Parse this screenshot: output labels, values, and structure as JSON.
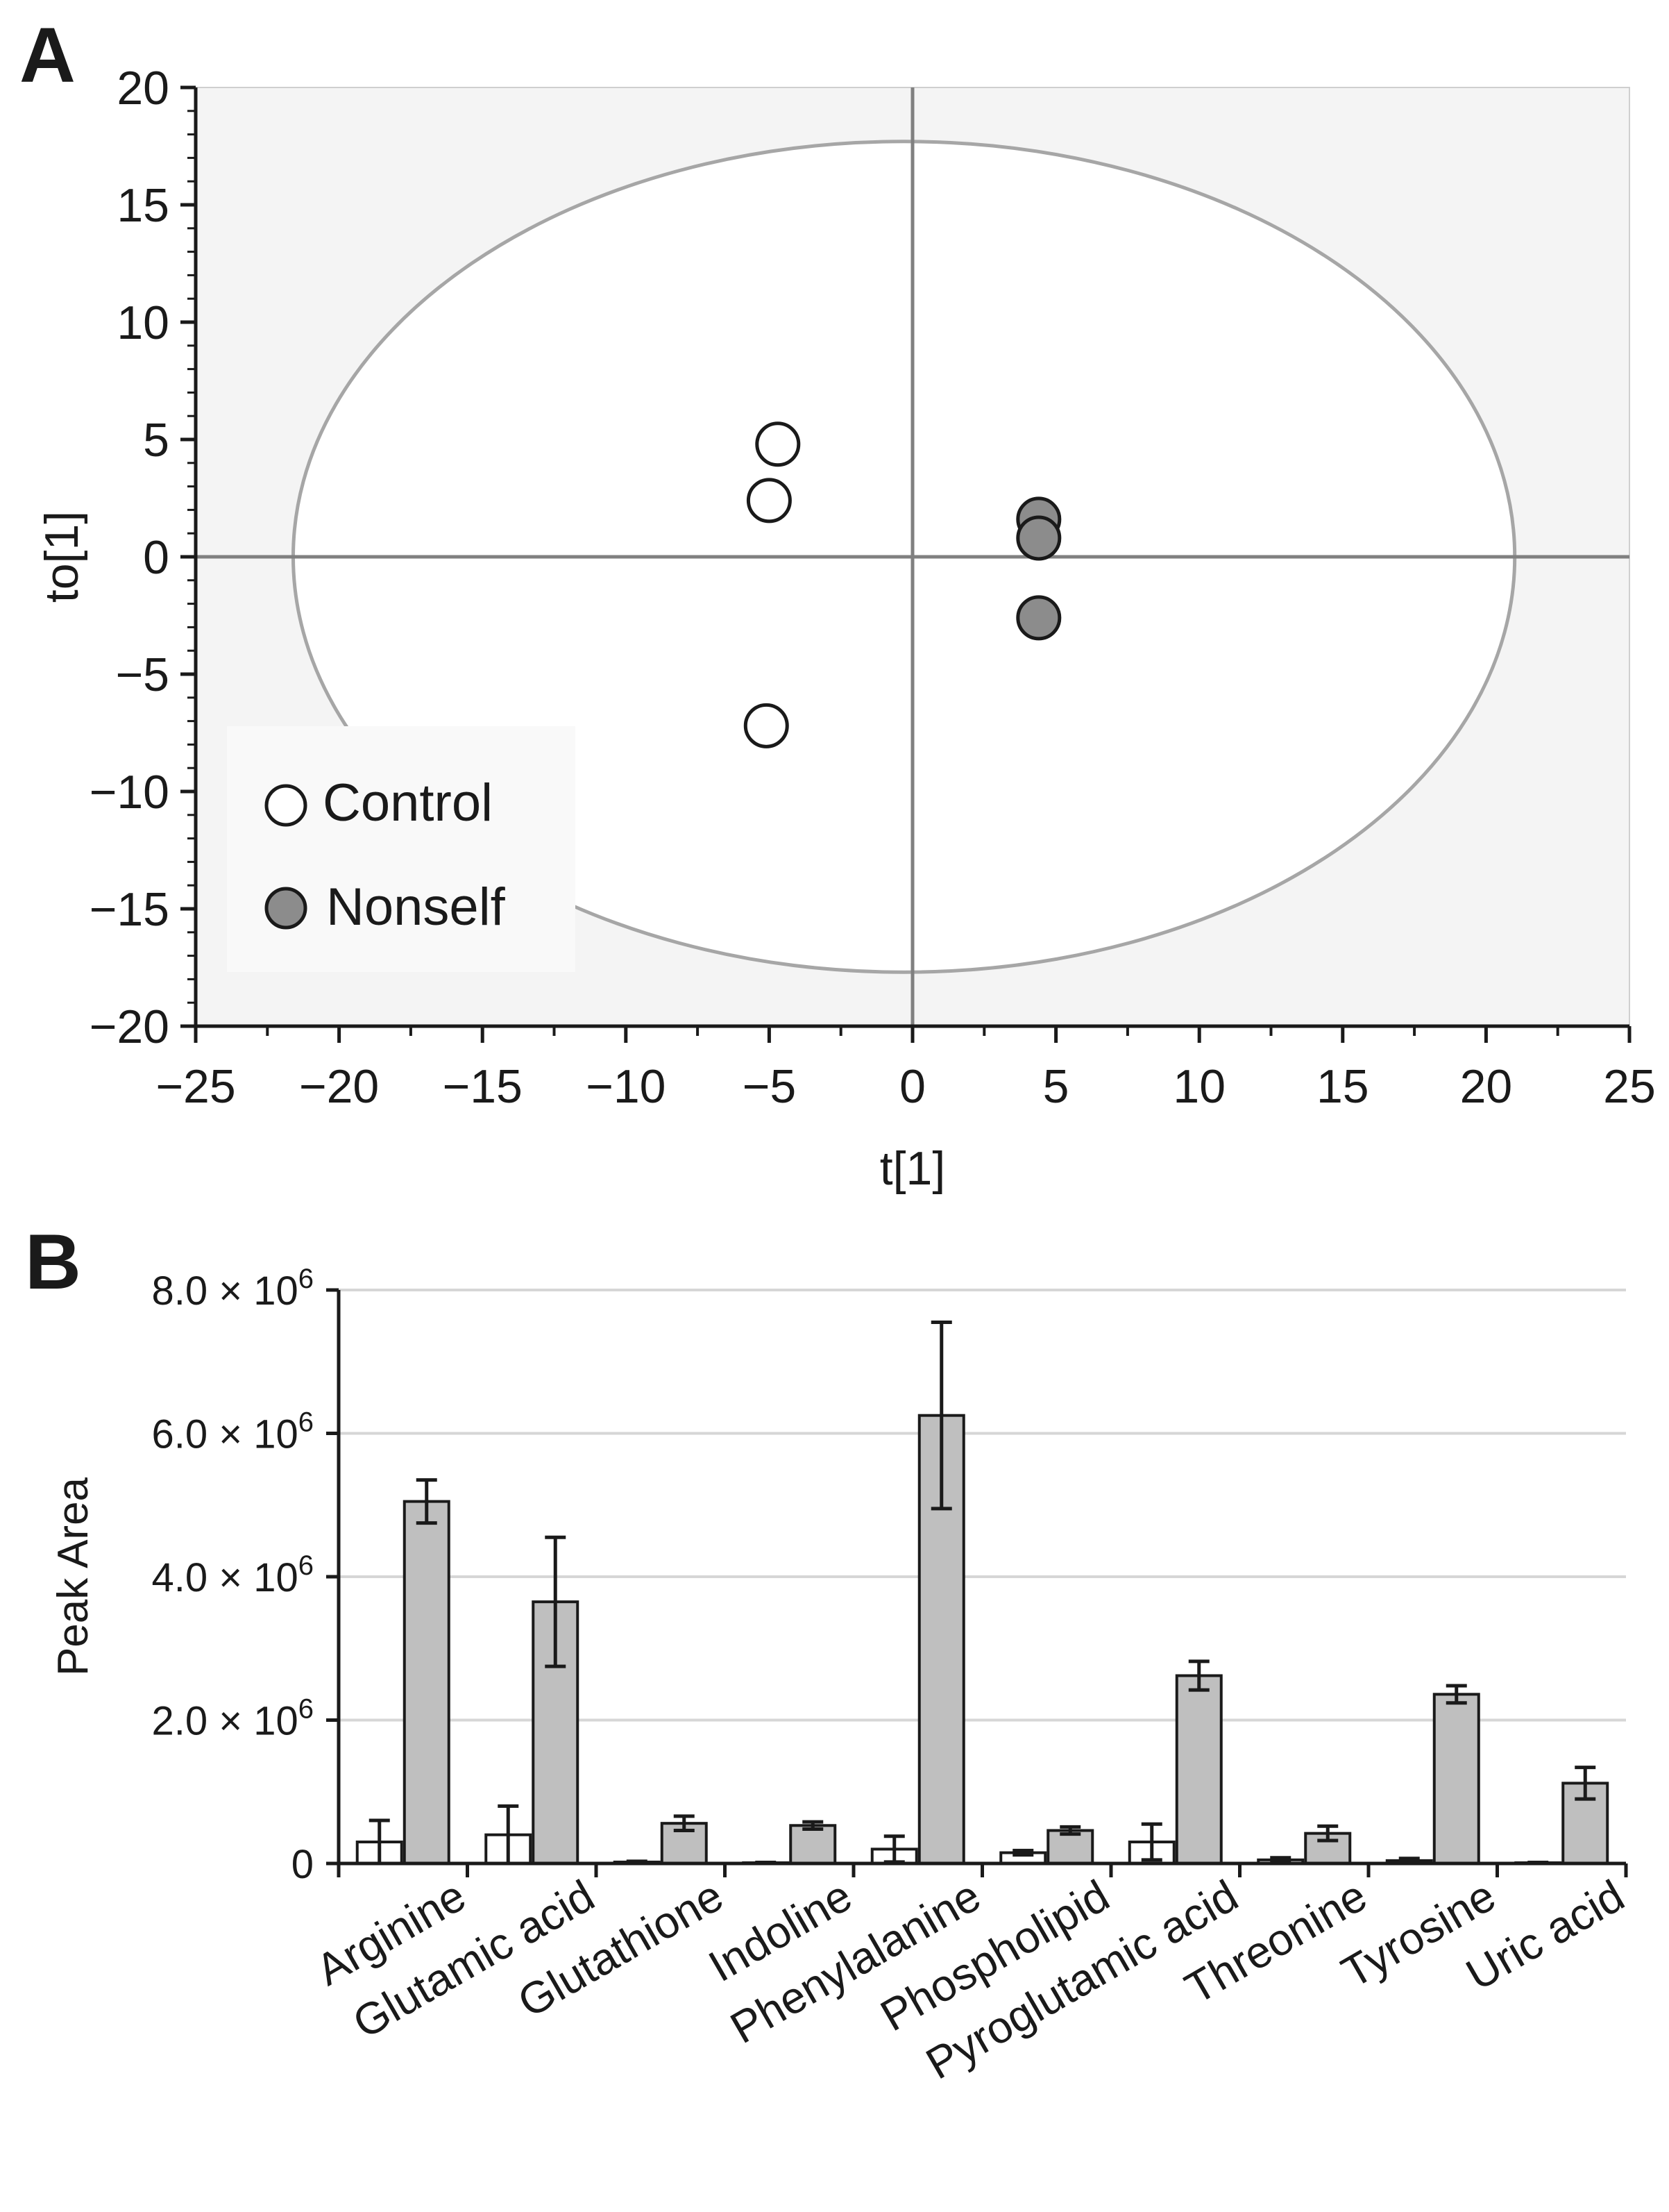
{
  "chart_data": [
    {
      "panel_label": "A",
      "type": "scatter",
      "title": "",
      "xlabel": "t[1]",
      "ylabel": "to[1]",
      "xlim": [
        -25,
        25
      ],
      "ylim": [
        -20,
        20
      ],
      "xticks": [
        -25,
        -20,
        -15,
        -10,
        -5,
        0,
        5,
        10,
        15,
        20,
        25
      ],
      "yticks": [
        -20,
        -15,
        -10,
        -5,
        0,
        5,
        10,
        15,
        20
      ],
      "xtick_labels": [
        "−25",
        "−20",
        "−15",
        "−10",
        "−5",
        "0",
        "5",
        "10",
        "15",
        "20",
        "25"
      ],
      "ytick_labels": [
        "−20",
        "−15",
        "−10",
        "−5",
        "0",
        "5",
        "10",
        "15",
        "20"
      ],
      "ellipse": {
        "center": [
          -0.3,
          0
        ],
        "semi_axis_x": 21.3,
        "semi_axis_y": 17.7
      },
      "legend_position": "bottom-left",
      "series": [
        {
          "name": "Control",
          "color": "#ffffff",
          "points": [
            [
              -4.7,
              4.8
            ],
            [
              -5.0,
              2.4
            ],
            [
              -5.1,
              -7.2
            ]
          ]
        },
        {
          "name": "Nonself",
          "color": "#8c8c8c",
          "points": [
            [
              4.4,
              1.6
            ],
            [
              4.4,
              0.8
            ],
            [
              4.4,
              -2.6
            ]
          ]
        }
      ],
      "colors": {
        "plot_background": "#f4f4f4",
        "ellipse_fill": "#ffffff",
        "ellipse_stroke": "#a6a6a6",
        "axis_lines": "#808080"
      }
    },
    {
      "panel_label": "B",
      "type": "bar",
      "title": "",
      "xlabel": "",
      "ylabel": "Peak Area",
      "ylim": [
        0,
        8000000
      ],
      "yticks": [
        0,
        2000000,
        4000000,
        6000000,
        8000000
      ],
      "ytick_labels": [
        {
          "mantissa": "0",
          "exponent": ""
        },
        {
          "mantissa": "2.0 × 10",
          "exponent": "6"
        },
        {
          "mantissa": "4.0 × 10",
          "exponent": "6"
        },
        {
          "mantissa": "6.0 × 10",
          "exponent": "6"
        },
        {
          "mantissa": "8.0 × 10",
          "exponent": "6"
        }
      ],
      "categories": [
        "Arginine",
        "Glutamic acid",
        "Glutathione",
        "Indoline",
        "Phenylalanine",
        "Phospholipid",
        "Pyroglutamic acid",
        "Threonine",
        "Tyrosine",
        "Uric acid"
      ],
      "series": [
        {
          "name": "Control",
          "color": "#ffffff",
          "values": [
            300000,
            400000,
            20000,
            10000,
            200000,
            150000,
            300000,
            50000,
            40000,
            10000
          ],
          "errors": [
            300000,
            400000,
            10000,
            5000,
            180000,
            30000,
            250000,
            30000,
            30000,
            5000
          ]
        },
        {
          "name": "Nonself",
          "color": "#bfbfbf",
          "values": [
            5050000,
            3650000,
            560000,
            530000,
            6250000,
            460000,
            2620000,
            420000,
            2360000,
            1120000
          ],
          "errors": [
            300000,
            900000,
            100000,
            50000,
            1300000,
            50000,
            200000,
            100000,
            120000,
            220000
          ]
        }
      ],
      "grid": true
    }
  ]
}
